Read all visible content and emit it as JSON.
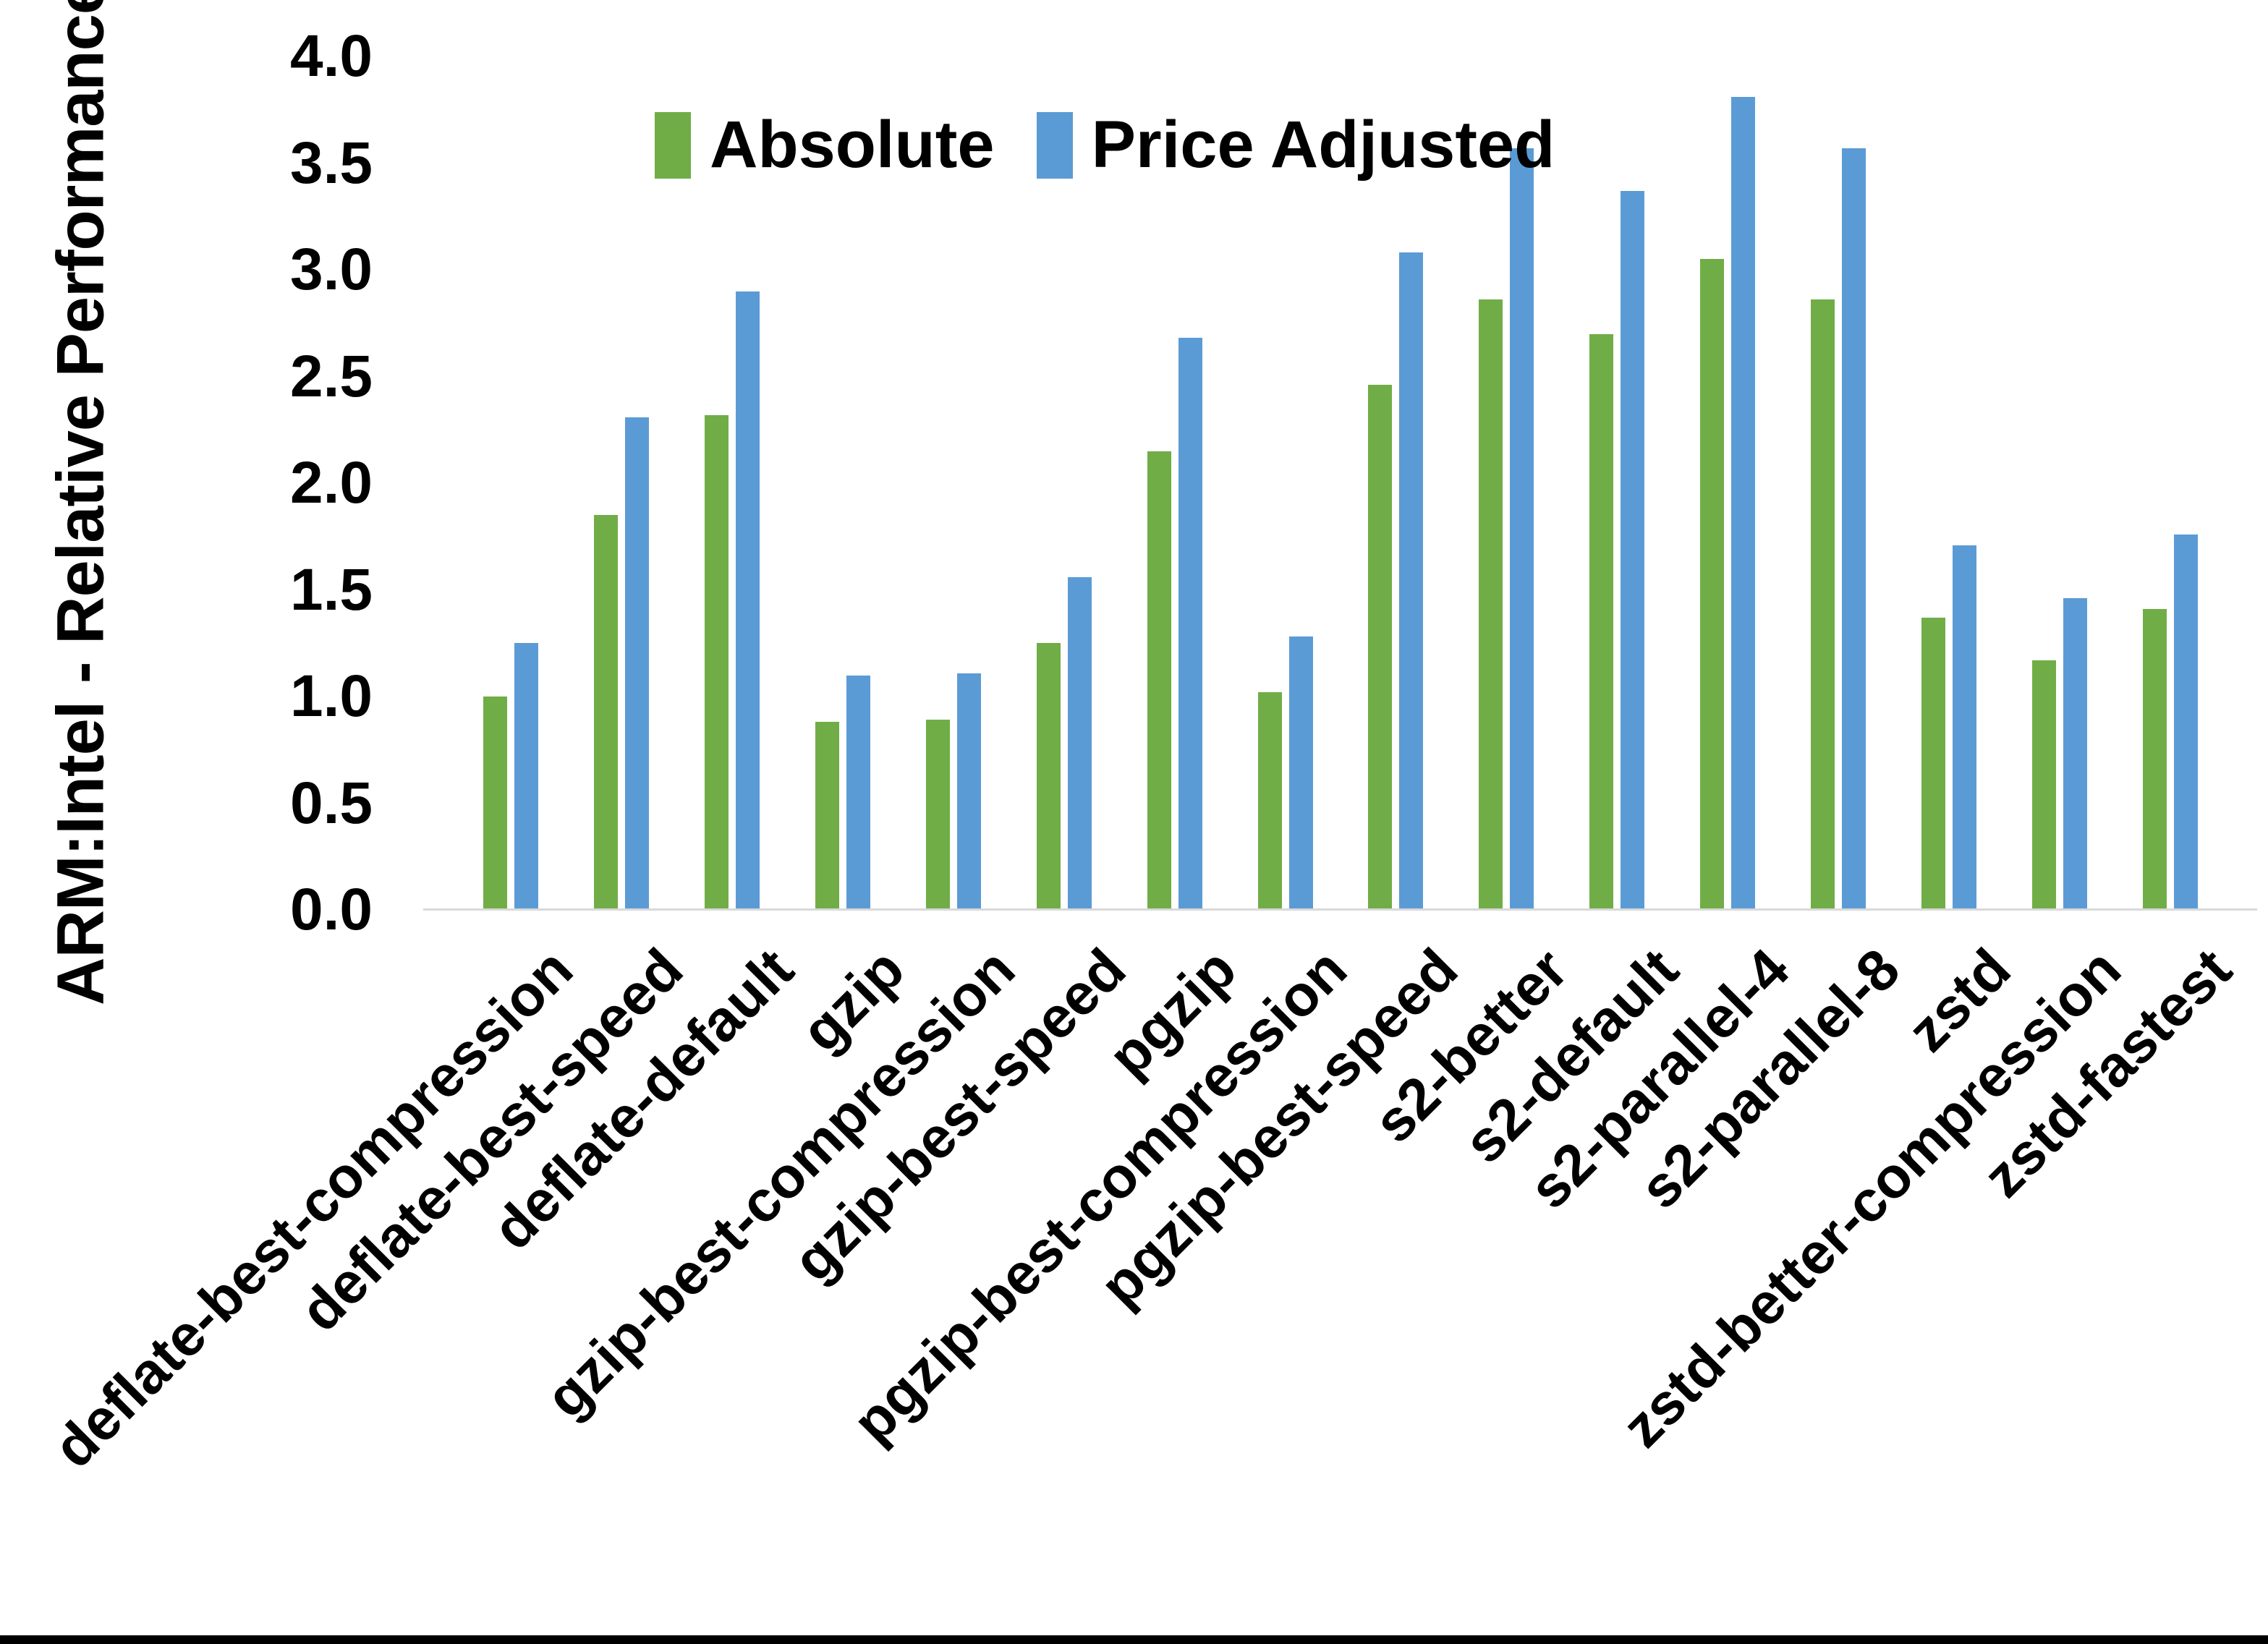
{
  "chart_data": {
    "type": "bar",
    "title": "",
    "ylabel": "ARM:Intel - Relative Performance",
    "xlabel": "",
    "ylim": [
      0.0,
      4.0
    ],
    "ytick_step": 0.5,
    "ytick_labels": [
      "0.0",
      "0.5",
      "1.0",
      "1.5",
      "2.0",
      "2.5",
      "3.0",
      "3.5",
      "4.0"
    ],
    "grid": false,
    "legend_position": "top-center",
    "categories": [
      "deflate-best-compression",
      "deflate-best-speed",
      "deflate-default",
      "gzip",
      "gzip-best-compression",
      "gzip-best-speed",
      "pgzip",
      "pgzip-best-compression",
      "pgzip-best-speed",
      "s2-better",
      "s2-default",
      "s2-parallel-4",
      "s2-parallel-8",
      "zstd",
      "zstd-better-compression",
      "zstd-fastest"
    ],
    "series": [
      {
        "name": "Absolute",
        "color": "#70AD47",
        "values": [
          1.0,
          1.85,
          2.32,
          0.88,
          0.89,
          1.25,
          2.15,
          1.02,
          2.46,
          2.86,
          2.7,
          3.05,
          2.86,
          1.37,
          1.17,
          1.41
        ]
      },
      {
        "name": "Price Adjusted",
        "color": "#5B9BD5",
        "values": [
          1.25,
          2.31,
          2.9,
          1.1,
          1.11,
          1.56,
          2.68,
          1.28,
          3.08,
          3.57,
          3.37,
          3.81,
          3.57,
          1.71,
          1.46,
          1.76
        ]
      }
    ]
  },
  "legend": {
    "items": [
      {
        "label": "Absolute",
        "color": "#70AD47"
      },
      {
        "label": "Price Adjusted",
        "color": "#5B9BD5"
      }
    ]
  },
  "colors": {
    "background": "#FFFFFF",
    "axis_line": "#D9D9D9",
    "text": "#000000",
    "bottom_border": "#000000"
  }
}
